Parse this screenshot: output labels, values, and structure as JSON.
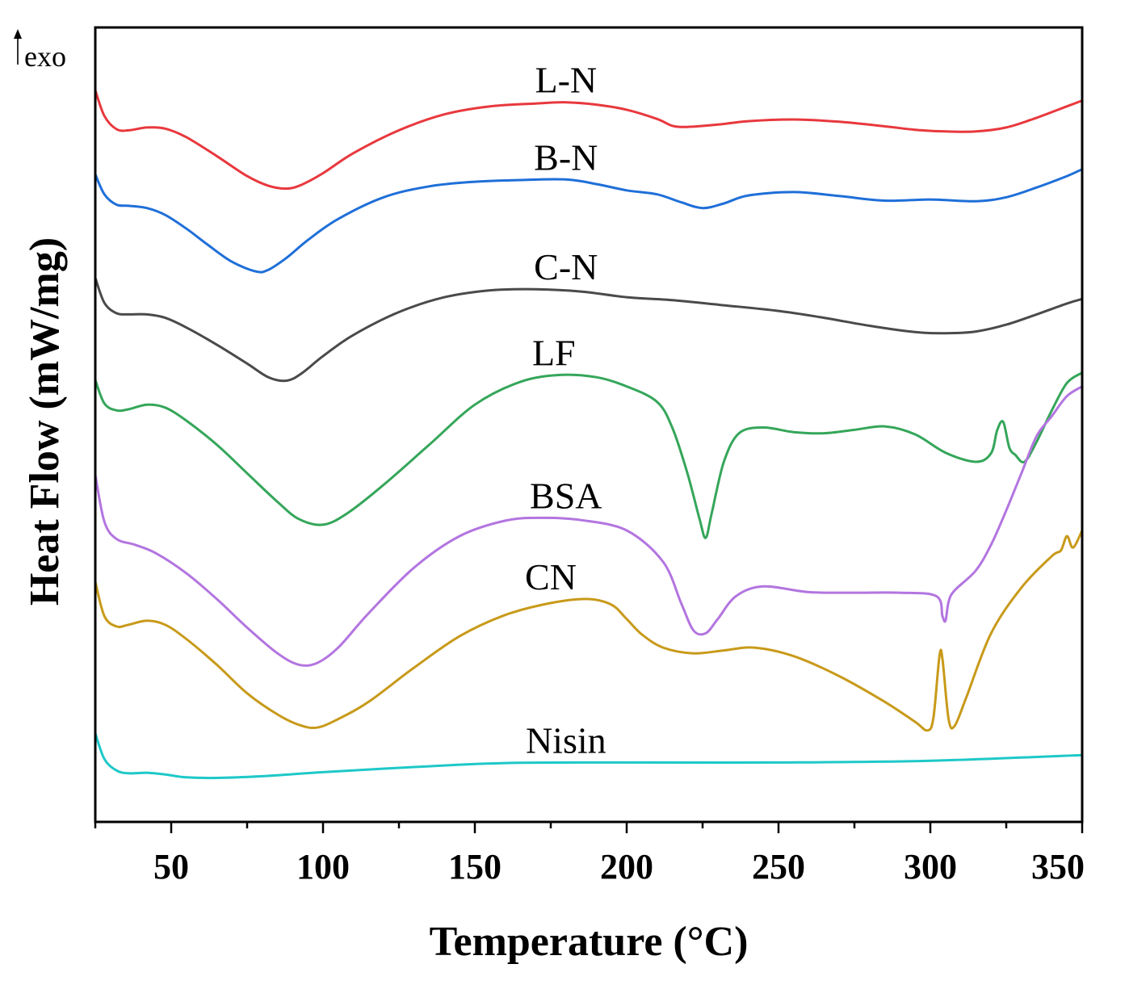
{
  "chart_data": {
    "type": "line",
    "title": "",
    "xlabel": "Temperature (°C)",
    "ylabel": "Heat Flow (mW/mg)",
    "exo_marker": "exo",
    "xlim": [
      25,
      350
    ],
    "xticks": [
      50,
      100,
      150,
      200,
      250,
      300,
      350
    ],
    "y_scale": "arbitrary units, curves vertically offset (no y tick labels)",
    "grid": false,
    "legend": "none; each curve labelled inline above it",
    "series": [
      {
        "name": "L-N",
        "color": "#e8383d",
        "x": [
          25,
          28,
          32,
          36,
          42,
          48,
          55,
          65,
          75,
          82,
          88,
          93,
          100,
          110,
          125,
          140,
          155,
          170,
          180,
          190,
          200,
          210,
          215,
          220,
          230,
          240,
          255,
          270,
          285,
          295,
          305,
          315,
          325,
          335,
          345,
          350
        ],
        "y": [
          8.8,
          8.35,
          8.12,
          8.1,
          8.15,
          8.13,
          7.98,
          7.65,
          7.3,
          7.13,
          7.08,
          7.15,
          7.35,
          7.7,
          8.1,
          8.38,
          8.52,
          8.57,
          8.59,
          8.55,
          8.46,
          8.3,
          8.18,
          8.16,
          8.2,
          8.26,
          8.29,
          8.25,
          8.17,
          8.11,
          8.08,
          8.08,
          8.15,
          8.32,
          8.52,
          8.62
        ]
      },
      {
        "name": "B-N",
        "color": "#1f6fd8",
        "x": [
          25,
          28,
          32,
          36,
          42,
          48,
          55,
          62,
          70,
          78,
          82,
          88,
          95,
          105,
          120,
          135,
          150,
          165,
          180,
          190,
          200,
          210,
          218,
          225,
          232,
          240,
          255,
          270,
          285,
          300,
          315,
          325,
          335,
          345,
          350
        ],
        "y": [
          7.33,
          6.98,
          6.8,
          6.78,
          6.74,
          6.62,
          6.38,
          6.1,
          5.8,
          5.63,
          5.66,
          5.87,
          6.18,
          6.55,
          6.93,
          7.12,
          7.2,
          7.23,
          7.24,
          7.16,
          7.05,
          6.98,
          6.84,
          6.74,
          6.82,
          6.96,
          7.02,
          6.95,
          6.87,
          6.89,
          6.86,
          6.93,
          7.1,
          7.3,
          7.42
        ]
      },
      {
        "name": "C-N",
        "color": "#4a4a4a",
        "x": [
          25,
          28,
          32,
          36,
          42,
          48,
          55,
          65,
          75,
          82,
          88,
          93,
          100,
          110,
          125,
          140,
          155,
          170,
          185,
          200,
          215,
          230,
          250,
          265,
          280,
          295,
          305,
          315,
          325,
          335,
          345,
          350
        ],
        "y": [
          5.52,
          5.08,
          4.9,
          4.88,
          4.88,
          4.82,
          4.65,
          4.35,
          4.02,
          3.78,
          3.72,
          3.85,
          4.15,
          4.52,
          4.92,
          5.18,
          5.3,
          5.32,
          5.28,
          5.18,
          5.13,
          5.05,
          4.94,
          4.82,
          4.68,
          4.57,
          4.55,
          4.58,
          4.7,
          4.88,
          5.07,
          5.15
        ]
      },
      {
        "name": "LF",
        "color": "#35a65a",
        "x": [
          25,
          28,
          32,
          36,
          42,
          48,
          55,
          65,
          75,
          85,
          92,
          100,
          108,
          120,
          135,
          150,
          165,
          178,
          190,
          200,
          210,
          215,
          220,
          224,
          226,
          228,
          232,
          237,
          245,
          255,
          265,
          275,
          285,
          295,
          305,
          315,
          320,
          322,
          324,
          326,
          328,
          331,
          335,
          340,
          345,
          350
        ],
        "y": [
          3.73,
          3.32,
          3.2,
          3.22,
          3.3,
          3.25,
          3.02,
          2.6,
          2.1,
          1.6,
          1.3,
          1.2,
          1.4,
          1.9,
          2.6,
          3.3,
          3.7,
          3.82,
          3.78,
          3.62,
          3.35,
          2.9,
          2.1,
          1.3,
          0.97,
          1.4,
          2.3,
          2.8,
          2.9,
          2.82,
          2.8,
          2.86,
          2.92,
          2.78,
          2.46,
          2.3,
          2.45,
          2.85,
          3.0,
          2.55,
          2.42,
          2.3,
          2.65,
          3.2,
          3.68,
          3.86
        ]
      },
      {
        "name": "BSA",
        "color": "#b375e0",
        "x": [
          25,
          28,
          32,
          38,
          45,
          55,
          65,
          75,
          85,
          92,
          98,
          105,
          115,
          130,
          145,
          160,
          172,
          185,
          200,
          212,
          218,
          222,
          226,
          230,
          236,
          245,
          260,
          275,
          290,
          302,
          304,
          305,
          306,
          308,
          315,
          320,
          325,
          330,
          335,
          340,
          345,
          350
        ],
        "y": [
          2.07,
          1.25,
          0.95,
          0.85,
          0.7,
          0.35,
          -0.1,
          -0.6,
          -1.05,
          -1.25,
          -1.22,
          -0.95,
          -0.35,
          0.45,
          1.0,
          1.27,
          1.32,
          1.28,
          1.1,
          0.55,
          -0.18,
          -0.65,
          -0.7,
          -0.45,
          -0.05,
          0.12,
          0.02,
          0.01,
          0.01,
          -0.05,
          -0.4,
          -0.48,
          -0.15,
          0.05,
          0.4,
          0.85,
          1.45,
          2.1,
          2.75,
          3.1,
          3.45,
          3.62
        ]
      },
      {
        "name": "CN",
        "color": "#c89a1a",
        "x": [
          25,
          28,
          32,
          36,
          42,
          48,
          55,
          65,
          75,
          85,
          92,
          98,
          105,
          115,
          130,
          145,
          160,
          175,
          187,
          195,
          200,
          205,
          212,
          222,
          232,
          242,
          255,
          270,
          285,
          295,
          299,
          301,
          303,
          304,
          306,
          308,
          312,
          320,
          330,
          340,
          343,
          345,
          347,
          350
        ],
        "y": [
          0.2,
          -0.4,
          -0.58,
          -0.55,
          -0.48,
          -0.55,
          -0.8,
          -1.25,
          -1.75,
          -2.12,
          -2.3,
          -2.35,
          -2.2,
          -1.9,
          -1.3,
          -0.75,
          -0.38,
          -0.17,
          -0.1,
          -0.2,
          -0.45,
          -0.72,
          -0.95,
          -1.05,
          -1.0,
          -0.95,
          -1.1,
          -1.45,
          -1.9,
          -2.25,
          -2.4,
          -2.18,
          -1.1,
          -1.15,
          -2.2,
          -2.32,
          -1.8,
          -0.7,
          0.1,
          0.65,
          0.75,
          1.0,
          0.8,
          1.1
        ]
      },
      {
        "name": "Nisin",
        "color": "#1ec8c8",
        "x": [
          25,
          28,
          32,
          36,
          42,
          48,
          55,
          65,
          80,
          100,
          130,
          160,
          200,
          250,
          300,
          350
        ],
        "y": [
          -2.45,
          -2.9,
          -3.1,
          -3.15,
          -3.14,
          -3.17,
          -3.22,
          -3.23,
          -3.2,
          -3.13,
          -3.04,
          -2.97,
          -2.96,
          -2.96,
          -2.93,
          -2.83
        ]
      }
    ],
    "series_labels": [
      {
        "name": "L-N",
        "x": 180
      },
      {
        "name": "B-N",
        "x": 180
      },
      {
        "name": "C-N",
        "x": 180
      },
      {
        "name": "LF",
        "x": 176
      },
      {
        "name": "BSA",
        "x": 180
      },
      {
        "name": "CN",
        "x": 175
      },
      {
        "name": "Nisin",
        "x": 180
      }
    ]
  }
}
